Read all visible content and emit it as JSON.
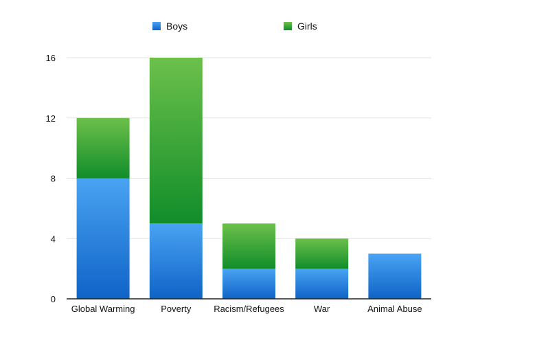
{
  "chart_data": {
    "type": "bar",
    "stacked": true,
    "title": "",
    "xlabel": "",
    "ylabel": "",
    "categories": [
      "Global Warming",
      "Poverty",
      "Racism/Refugees",
      "War",
      "Animal Abuse"
    ],
    "series": [
      {
        "name": "Boys",
        "values": [
          8,
          5,
          2,
          2,
          3
        ],
        "color_top": "#4aa3f2",
        "color_bottom": "#0f63c7"
      },
      {
        "name": "Girls",
        "values": [
          4,
          11,
          3,
          2,
          0
        ],
        "color_top": "#6cc04a",
        "color_bottom": "#118d2a"
      }
    ],
    "ylim": [
      0,
      16
    ],
    "yticks": [
      0,
      4,
      8,
      12,
      16
    ],
    "grid": true,
    "legend_position": "top"
  }
}
